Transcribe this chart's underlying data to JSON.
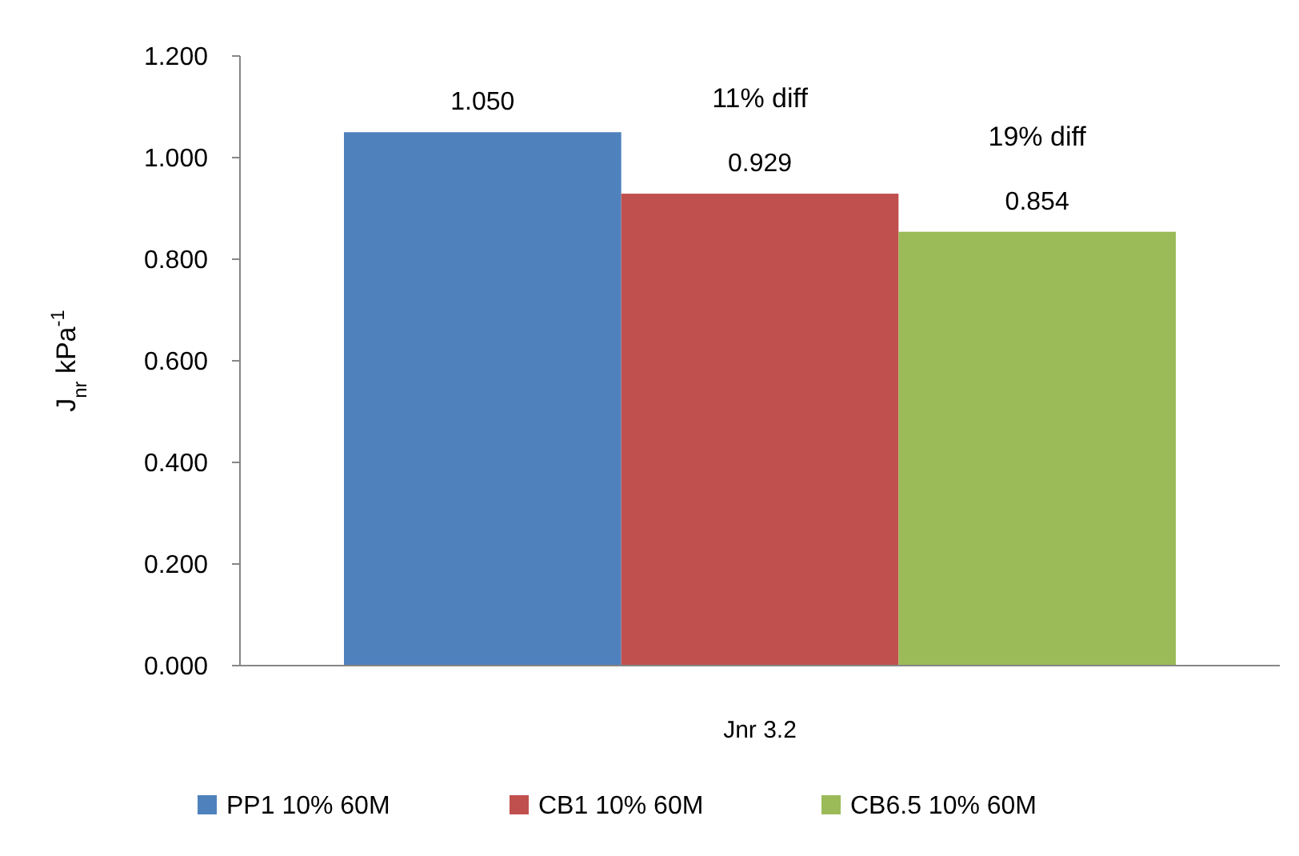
{
  "chart_data": {
    "type": "bar",
    "categories": [
      "Jnr 3.2"
    ],
    "ylabel": "J$_{nr}$ kPa$^{-1}$",
    "series": [
      {
        "name": "PP1 10% 60M",
        "color": "#4f81bd",
        "values": [
          1.05
        ],
        "value_labels": [
          "1.050"
        ]
      },
      {
        "name": "CB1 10% 60M",
        "color": "#c0504d",
        "values": [
          0.929
        ],
        "value_labels": [
          "0.929"
        ]
      },
      {
        "name": "CB6.5 10% 60M",
        "color": "#9bbb59",
        "values": [
          0.854
        ],
        "value_labels": [
          "0.854"
        ]
      }
    ],
    "annotations": [
      "11% diff",
      "19% diff"
    ],
    "ylim": [
      0,
      1.2
    ],
    "yticks": [
      {
        "value": 0,
        "label": "0.000"
      },
      {
        "value": 0.2,
        "label": "0.200"
      },
      {
        "value": 0.4,
        "label": "0.400"
      },
      {
        "value": 0.6,
        "label": "0.600"
      },
      {
        "value": 0.8,
        "label": "0.800"
      },
      {
        "value": 1,
        "label": "1.000"
      },
      {
        "value": 1.2,
        "label": "1.200"
      }
    ],
    "legend": "bottom",
    "grid": false
  }
}
